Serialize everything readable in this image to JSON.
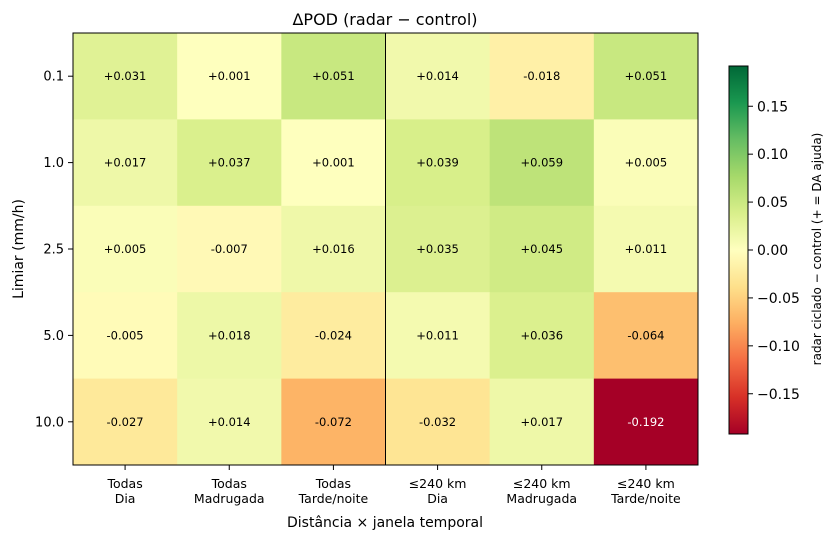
{
  "chart_data": {
    "type": "heatmap",
    "title": "ΔPOD  (radar − control)",
    "xlabel": "Distância × janela temporal",
    "ylabel": "Limiar (mm/h)",
    "x_categories": [
      [
        "Todas",
        "Dia"
      ],
      [
        "Todas",
        "Madrugada"
      ],
      [
        "Todas",
        "Tarde/noite"
      ],
      [
        "≤240 km",
        "Dia"
      ],
      [
        "≤240 km",
        "Madrugada"
      ],
      [
        "≤240 km",
        "Tarde/noite"
      ]
    ],
    "y_categories": [
      "0.1",
      "1.0",
      "2.5",
      "5.0",
      "10.0"
    ],
    "values": [
      [
        0.031,
        0.001,
        0.051,
        0.014,
        -0.018,
        0.051
      ],
      [
        0.017,
        0.037,
        0.001,
        0.039,
        0.059,
        0.005
      ],
      [
        0.005,
        -0.007,
        0.016,
        0.035,
        0.045,
        0.011
      ],
      [
        -0.005,
        0.018,
        -0.024,
        0.011,
        0.036,
        -0.064
      ],
      [
        -0.027,
        0.014,
        -0.072,
        -0.032,
        0.017,
        -0.192
      ]
    ],
    "cell_labels": [
      [
        "+0.031",
        "+0.001",
        "+0.051",
        "+0.014",
        "-0.018",
        "+0.051"
      ],
      [
        "+0.017",
        "+0.037",
        "+0.001",
        "+0.039",
        "+0.059",
        "+0.005"
      ],
      [
        "+0.005",
        "-0.007",
        "+0.016",
        "+0.035",
        "+0.045",
        "+0.011"
      ],
      [
        "-0.005",
        "+0.018",
        "-0.024",
        "+0.011",
        "+0.036",
        "-0.064"
      ],
      [
        "-0.027",
        "+0.014",
        "-0.072",
        "-0.032",
        "+0.017",
        "-0.192"
      ]
    ],
    "colormap": "RdYlGn",
    "vmin": -0.192,
    "vmax": 0.192,
    "divider_after_column": 3,
    "colorbar": {
      "label": "radar ciclado − control  (+ = DA ajuda)",
      "ticks": [
        0.15,
        0.1,
        0.05,
        0.0,
        -0.05,
        -0.1,
        -0.15
      ],
      "tick_labels": [
        "0.15",
        "0.10",
        "0.05",
        "0.00",
        "−0.05",
        "−0.10",
        "−0.15"
      ]
    }
  }
}
